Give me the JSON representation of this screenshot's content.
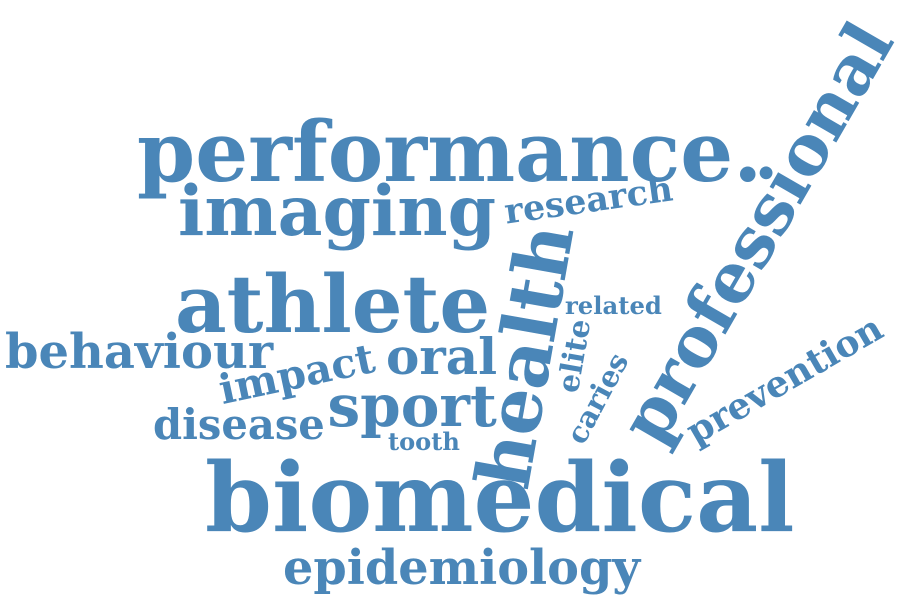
{
  "color": "#4a86b8",
  "words": [
    {
      "id": "performance",
      "text": "performance."
    },
    {
      "id": "professional",
      "text": "professional"
    },
    {
      "id": "imaging",
      "text": "imaging"
    },
    {
      "id": "research",
      "text": "research"
    },
    {
      "id": "athlete",
      "text": "athlete"
    },
    {
      "id": "health",
      "text": "health"
    },
    {
      "id": "related",
      "text": "related"
    },
    {
      "id": "behaviour",
      "text": "behaviour"
    },
    {
      "id": "impact",
      "text": "impact"
    },
    {
      "id": "oral",
      "text": "oral"
    },
    {
      "id": "elite",
      "text": "elite"
    },
    {
      "id": "caries",
      "text": "caries"
    },
    {
      "id": "prevention",
      "text": "prevention"
    },
    {
      "id": "sport",
      "text": "sport"
    },
    {
      "id": "disease",
      "text": "disease"
    },
    {
      "id": "tooth",
      "text": "tooth"
    },
    {
      "id": "biomedical",
      "text": "biomedical"
    },
    {
      "id": "epidemiology",
      "text": "epidemiology"
    }
  ]
}
